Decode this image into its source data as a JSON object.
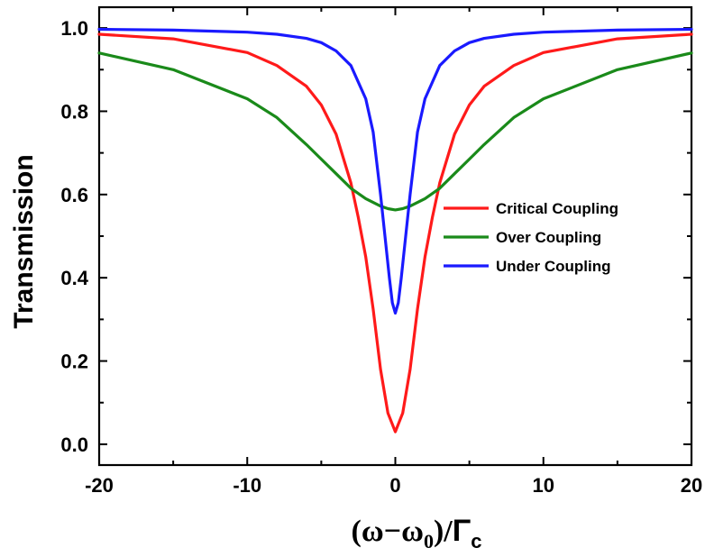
{
  "chart_data": {
    "type": "line",
    "title": "",
    "ylabel": "Transmission",
    "xlabel": {
      "omega": "ω",
      "minus": "−",
      "omega0": "ω",
      "sub0": "0",
      "close_slash": ")/",
      "open": "(",
      "gamma": "Γ",
      "subc": "c"
    },
    "xlim": [
      -20,
      20
    ],
    "ylim": [
      -0.05,
      1.05
    ],
    "xticks": [
      -20,
      -10,
      0,
      10,
      20
    ],
    "xtick_labels": [
      "-20",
      "-10",
      "0",
      "10",
      "20"
    ],
    "yticks": [
      0.0,
      0.2,
      0.4,
      0.6,
      0.8,
      1.0
    ],
    "ytick_labels": [
      "0.0",
      "0.2",
      "0.4",
      "0.6",
      "0.8",
      "1.0"
    ],
    "legend_position": "center-right",
    "grid": false,
    "series": [
      {
        "name": "Critical Coupling",
        "color": "#ff1a1a",
        "x": [
          -20,
          -15,
          -10,
          -8,
          -6,
          -5,
          -4,
          -3,
          -2.5,
          -2,
          -1.5,
          -1,
          -0.5,
          0,
          0.5,
          1,
          1.5,
          2,
          2.5,
          3,
          4,
          5,
          6,
          8,
          10,
          15,
          20
        ],
        "y": [
          0.985,
          0.974,
          0.941,
          0.91,
          0.86,
          0.815,
          0.745,
          0.628,
          0.545,
          0.45,
          0.325,
          0.18,
          0.075,
          0.03,
          0.075,
          0.18,
          0.325,
          0.45,
          0.545,
          0.628,
          0.745,
          0.815,
          0.86,
          0.91,
          0.941,
          0.974,
          0.985
        ]
      },
      {
        "name": "Over Coupling",
        "color": "#1a8a1a",
        "x": [
          -20,
          -15,
          -10,
          -8,
          -6,
          -5,
          -4,
          -3,
          -2,
          -1,
          -0.5,
          0,
          0.5,
          1,
          2,
          3,
          4,
          5,
          6,
          8,
          10,
          15,
          20
        ],
        "y": [
          0.94,
          0.9,
          0.83,
          0.785,
          0.72,
          0.685,
          0.65,
          0.615,
          0.59,
          0.572,
          0.566,
          0.563,
          0.566,
          0.572,
          0.59,
          0.615,
          0.65,
          0.685,
          0.72,
          0.785,
          0.83,
          0.9,
          0.94
        ]
      },
      {
        "name": "Under Coupling",
        "color": "#1a1aff",
        "x": [
          -20,
          -15,
          -10,
          -8,
          -6,
          -5,
          -4,
          -3,
          -2,
          -1.5,
          -1,
          -0.7,
          -0.4,
          -0.2,
          0,
          0.2,
          0.4,
          0.7,
          1,
          1.5,
          2,
          3,
          4,
          5,
          6,
          8,
          10,
          15,
          20
        ],
        "y": [
          0.997,
          0.995,
          0.99,
          0.985,
          0.975,
          0.965,
          0.945,
          0.91,
          0.83,
          0.75,
          0.6,
          0.5,
          0.4,
          0.34,
          0.315,
          0.34,
          0.4,
          0.5,
          0.6,
          0.75,
          0.83,
          0.91,
          0.945,
          0.965,
          0.975,
          0.985,
          0.99,
          0.995,
          0.997
        ]
      }
    ]
  }
}
